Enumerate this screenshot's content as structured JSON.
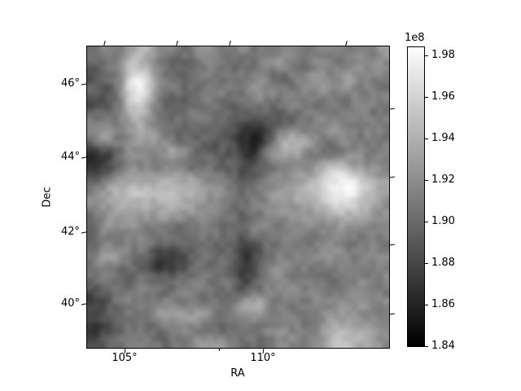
{
  "chart_data": {
    "type": "heatmap",
    "title": "",
    "xlabel": "RA",
    "ylabel": "Dec",
    "x_tick_labels": [
      "105°",
      "110°"
    ],
    "x_tick_values": [
      105,
      110
    ],
    "y_tick_labels": [
      "46°",
      "44°",
      "42°",
      "40°"
    ],
    "y_tick_values": [
      46,
      44,
      42,
      40
    ],
    "ra_range": [
      103.65,
      114.56
    ],
    "dec_range": [
      38.85,
      47.08
    ],
    "grid": "off",
    "colorbar": {
      "scale_label": "1e8",
      "tick_labels": [
        "1.98",
        "1.96",
        "1.94",
        "1.92",
        "1.90",
        "1.88",
        "1.86",
        "1.84"
      ],
      "tick_values": [
        1.98,
        1.96,
        1.94,
        1.92,
        1.9,
        1.88,
        1.86,
        1.84
      ],
      "vmin": 1.84,
      "vmax": 1.984,
      "cmap": "gray",
      "color_low": "#000000",
      "color_high": "#fdfdfd"
    },
    "frame_ticks": {
      "top_fracs": [
        0.057,
        0.296,
        0.472,
        0.857
      ],
      "bottom_major_fracs": [
        0.124,
        0.582
      ],
      "bottom_minor_fracs": [
        0.437
      ],
      "right_fracs": [
        0.205,
        0.432,
        0.657,
        0.886
      ],
      "left_fracs": [
        0.124,
        0.368,
        0.616,
        0.854
      ]
    },
    "values": [
      [
        0.45,
        0.55,
        0.5,
        0.65,
        0.7,
        0.55,
        0.5,
        0.45,
        0.5,
        0.55,
        0.5,
        0.48,
        0.52,
        0.45,
        0.5,
        0.55,
        0.48,
        0.45,
        0.52,
        0.5,
        0.46,
        0.55,
        0.5,
        0.6
      ],
      [
        0.35,
        0.45,
        0.55,
        0.75,
        0.72,
        0.5,
        0.42,
        0.35,
        0.4,
        0.52,
        0.48,
        0.45,
        0.4,
        0.45,
        0.55,
        0.6,
        0.5,
        0.42,
        0.55,
        0.48,
        0.45,
        0.6,
        0.52,
        0.55
      ],
      [
        0.3,
        0.42,
        0.5,
        0.88,
        0.9,
        0.55,
        0.45,
        0.4,
        0.45,
        0.5,
        0.45,
        0.42,
        0.5,
        0.55,
        0.45,
        0.4,
        0.5,
        0.55,
        0.6,
        0.52,
        0.62,
        0.58,
        0.48,
        0.52
      ],
      [
        0.4,
        0.3,
        0.48,
        0.92,
        0.95,
        0.6,
        0.5,
        0.45,
        0.42,
        0.48,
        0.52,
        0.45,
        0.48,
        0.62,
        0.55,
        0.48,
        0.45,
        0.52,
        0.58,
        0.5,
        0.55,
        0.48,
        0.52,
        0.45
      ],
      [
        0.28,
        0.35,
        0.45,
        0.78,
        0.8,
        0.52,
        0.38,
        0.35,
        0.42,
        0.5,
        0.45,
        0.4,
        0.45,
        0.5,
        0.42,
        0.45,
        0.55,
        0.48,
        0.42,
        0.5,
        0.45,
        0.52,
        0.48,
        0.5
      ],
      [
        0.45,
        0.4,
        0.5,
        0.68,
        0.7,
        0.48,
        0.42,
        0.45,
        0.5,
        0.45,
        0.42,
        0.38,
        0.35,
        0.38,
        0.42,
        0.35,
        0.4,
        0.48,
        0.52,
        0.45,
        0.5,
        0.55,
        0.45,
        0.48
      ],
      [
        0.5,
        0.6,
        0.45,
        0.62,
        0.65,
        0.5,
        0.45,
        0.4,
        0.45,
        0.42,
        0.4,
        0.35,
        0.22,
        0.18,
        0.3,
        0.42,
        0.48,
        0.45,
        0.55,
        0.6,
        0.52,
        0.48,
        0.55,
        0.5
      ],
      [
        0.45,
        0.65,
        0.48,
        0.58,
        0.6,
        0.6,
        0.5,
        0.42,
        0.4,
        0.38,
        0.35,
        0.3,
        0.15,
        0.12,
        0.35,
        0.7,
        0.72,
        0.68,
        0.5,
        0.45,
        0.55,
        0.48,
        0.5,
        0.46
      ],
      [
        0.2,
        0.22,
        0.4,
        0.55,
        0.58,
        0.5,
        0.65,
        0.62,
        0.45,
        0.4,
        0.38,
        0.35,
        0.22,
        0.2,
        0.6,
        0.65,
        0.62,
        0.55,
        0.48,
        0.42,
        0.5,
        0.55,
        0.48,
        0.52
      ],
      [
        0.18,
        0.25,
        0.42,
        0.55,
        0.52,
        0.48,
        0.5,
        0.45,
        0.42,
        0.45,
        0.4,
        0.38,
        0.3,
        0.35,
        0.45,
        0.5,
        0.55,
        0.52,
        0.6,
        0.75,
        0.72,
        0.6,
        0.55,
        0.5
      ],
      [
        0.35,
        0.45,
        0.6,
        0.62,
        0.65,
        0.6,
        0.68,
        0.65,
        0.6,
        0.55,
        0.48,
        0.42,
        0.32,
        0.4,
        0.5,
        0.55,
        0.6,
        0.65,
        0.72,
        0.9,
        0.92,
        0.85,
        0.7,
        0.6
      ],
      [
        0.5,
        0.62,
        0.72,
        0.75,
        0.78,
        0.72,
        0.75,
        0.7,
        0.68,
        0.62,
        0.55,
        0.48,
        0.42,
        0.48,
        0.55,
        0.62,
        0.68,
        0.72,
        0.8,
        0.95,
        0.97,
        0.9,
        0.75,
        0.65
      ],
      [
        0.55,
        0.6,
        0.68,
        0.72,
        0.7,
        0.65,
        0.72,
        0.68,
        0.62,
        0.58,
        0.52,
        0.45,
        0.45,
        0.5,
        0.58,
        0.6,
        0.62,
        0.68,
        0.72,
        0.85,
        0.88,
        0.8,
        0.68,
        0.58
      ],
      [
        0.45,
        0.55,
        0.62,
        0.65,
        0.6,
        0.58,
        0.62,
        0.58,
        0.55,
        0.52,
        0.48,
        0.42,
        0.4,
        0.45,
        0.52,
        0.55,
        0.58,
        0.6,
        0.62,
        0.68,
        0.7,
        0.65,
        0.6,
        0.55
      ],
      [
        0.42,
        0.6,
        0.52,
        0.55,
        0.5,
        0.48,
        0.45,
        0.4,
        0.45,
        0.5,
        0.45,
        0.42,
        0.45,
        0.55,
        0.5,
        0.48,
        0.52,
        0.55,
        0.5,
        0.55,
        0.58,
        0.52,
        0.48,
        0.5
      ],
      [
        0.35,
        0.45,
        0.5,
        0.48,
        0.52,
        0.45,
        0.42,
        0.45,
        0.48,
        0.45,
        0.42,
        0.4,
        0.3,
        0.38,
        0.45,
        0.5,
        0.48,
        0.45,
        0.52,
        0.55,
        0.5,
        0.46,
        0.52,
        0.48
      ],
      [
        0.45,
        0.65,
        0.62,
        0.5,
        0.45,
        0.25,
        0.22,
        0.28,
        0.4,
        0.45,
        0.42,
        0.38,
        0.2,
        0.3,
        0.42,
        0.48,
        0.52,
        0.48,
        0.55,
        0.6,
        0.52,
        0.5,
        0.55,
        0.52
      ],
      [
        0.48,
        0.52,
        0.45,
        0.42,
        0.4,
        0.22,
        0.2,
        0.3,
        0.42,
        0.4,
        0.45,
        0.4,
        0.18,
        0.32,
        0.5,
        0.6,
        0.52,
        0.48,
        0.45,
        0.5,
        0.55,
        0.48,
        0.52,
        0.5
      ],
      [
        0.45,
        0.48,
        0.42,
        0.38,
        0.45,
        0.4,
        0.38,
        0.42,
        0.45,
        0.48,
        0.42,
        0.45,
        0.25,
        0.38,
        0.58,
        0.52,
        0.48,
        0.52,
        0.48,
        0.45,
        0.5,
        0.55,
        0.48,
        0.52
      ],
      [
        0.3,
        0.42,
        0.48,
        0.45,
        0.5,
        0.45,
        0.42,
        0.48,
        0.52,
        0.45,
        0.48,
        0.42,
        0.35,
        0.45,
        0.48,
        0.52,
        0.55,
        0.48,
        0.52,
        0.48,
        0.45,
        0.52,
        0.55,
        0.48
      ],
      [
        0.25,
        0.3,
        0.45,
        0.5,
        0.48,
        0.52,
        0.55,
        0.5,
        0.48,
        0.45,
        0.42,
        0.45,
        0.68,
        0.7,
        0.52,
        0.48,
        0.45,
        0.5,
        0.55,
        0.52,
        0.58,
        0.6,
        0.52,
        0.55
      ],
      [
        0.28,
        0.35,
        0.42,
        0.48,
        0.45,
        0.55,
        0.65,
        0.62,
        0.65,
        0.6,
        0.48,
        0.45,
        0.5,
        0.55,
        0.48,
        0.52,
        0.48,
        0.45,
        0.52,
        0.6,
        0.58,
        0.55,
        0.5,
        0.48
      ],
      [
        0.2,
        0.25,
        0.4,
        0.45,
        0.48,
        0.42,
        0.45,
        0.5,
        0.45,
        0.48,
        0.42,
        0.4,
        0.45,
        0.48,
        0.52,
        0.55,
        0.5,
        0.48,
        0.55,
        0.7,
        0.72,
        0.68,
        0.6,
        0.55
      ],
      [
        0.3,
        0.35,
        0.45,
        0.48,
        0.52,
        0.45,
        0.42,
        0.48,
        0.55,
        0.6,
        0.58,
        0.5,
        0.45,
        0.42,
        0.48,
        0.52,
        0.55,
        0.5,
        0.58,
        0.72,
        0.75,
        0.7,
        0.62,
        0.55
      ]
    ]
  }
}
